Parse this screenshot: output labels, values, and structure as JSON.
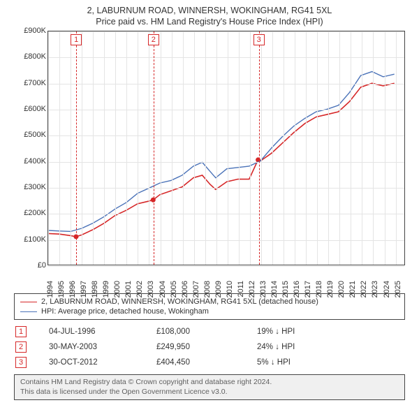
{
  "titles": {
    "line1": "2, LABURNUM ROAD, WINNERSH, WOKINGHAM, RG41 5XL",
    "line2": "Price paid vs. HM Land Registry's House Price Index (HPI)"
  },
  "chart": {
    "type": "line",
    "background_color": "#ffffff",
    "grid_color": "#e4e4e4",
    "axis_color": "#444444",
    "x": {
      "min": 1994,
      "max": 2025.9,
      "ticks": [
        1994,
        1995,
        1996,
        1997,
        1998,
        1999,
        2000,
        2001,
        2002,
        2003,
        2004,
        2005,
        2006,
        2007,
        2008,
        2009,
        2010,
        2011,
        2012,
        2013,
        2014,
        2015,
        2016,
        2017,
        2018,
        2019,
        2020,
        2021,
        2022,
        2023,
        2024,
        2025
      ],
      "tick_labels": [
        "1994",
        "1995",
        "1996",
        "1997",
        "1998",
        "1999",
        "2000",
        "2001",
        "2002",
        "2003",
        "2004",
        "2005",
        "2006",
        "2007",
        "2008",
        "2009",
        "2010",
        "2011",
        "2012",
        "2013",
        "2014",
        "2015",
        "2016",
        "2017",
        "2018",
        "2019",
        "2020",
        "2021",
        "2022",
        "2023",
        "2024",
        "2025"
      ],
      "label_fontsize": 11
    },
    "y": {
      "min": 0,
      "max": 900000,
      "ticks": [
        0,
        100000,
        200000,
        300000,
        400000,
        500000,
        600000,
        700000,
        800000,
        900000
      ],
      "tick_labels": [
        "£0",
        "£100K",
        "£200K",
        "£300K",
        "£400K",
        "£500K",
        "£600K",
        "£700K",
        "£800K",
        "£900K"
      ],
      "label_fontsize": 11
    },
    "series": [
      {
        "id": "property",
        "label": "2, LABURNUM ROAD, WINNERSH, WOKINGHAM, RG41 5XL (detached house)",
        "color": "#d62728",
        "line_width": 1.6,
        "points": [
          [
            1994.0,
            120000
          ],
          [
            1995.0,
            118000
          ],
          [
            1996.0,
            112000
          ],
          [
            1996.5,
            108000
          ],
          [
            1997.0,
            115000
          ],
          [
            1998.0,
            135000
          ],
          [
            1999.0,
            160000
          ],
          [
            2000.0,
            190000
          ],
          [
            2001.0,
            210000
          ],
          [
            2002.0,
            235000
          ],
          [
            2003.0,
            245000
          ],
          [
            2003.4,
            249950
          ],
          [
            2004.0,
            270000
          ],
          [
            2005.0,
            285000
          ],
          [
            2006.0,
            300000
          ],
          [
            2007.0,
            335000
          ],
          [
            2007.8,
            345000
          ],
          [
            2008.5,
            310000
          ],
          [
            2009.0,
            290000
          ],
          [
            2010.0,
            320000
          ],
          [
            2011.0,
            330000
          ],
          [
            2012.0,
            330000
          ],
          [
            2012.8,
            404450
          ],
          [
            2013.0,
            400000
          ],
          [
            2014.0,
            430000
          ],
          [
            2015.0,
            470000
          ],
          [
            2016.0,
            510000
          ],
          [
            2017.0,
            545000
          ],
          [
            2018.0,
            570000
          ],
          [
            2019.0,
            580000
          ],
          [
            2020.0,
            590000
          ],
          [
            2021.0,
            630000
          ],
          [
            2022.0,
            685000
          ],
          [
            2023.0,
            700000
          ],
          [
            2024.0,
            690000
          ],
          [
            2024.5,
            695000
          ],
          [
            2025.0,
            700000
          ]
        ],
        "markers": [
          {
            "x": 1996.5,
            "y": 108000
          },
          {
            "x": 2003.4,
            "y": 249950
          },
          {
            "x": 2012.8,
            "y": 404450
          }
        ]
      },
      {
        "id": "hpi",
        "label": "HPI: Average price, detached house, Wokingham",
        "color": "#4a72b8",
        "line_width": 1.4,
        "points": [
          [
            1994.0,
            132000
          ],
          [
            1995.0,
            130000
          ],
          [
            1996.0,
            128000
          ],
          [
            1997.0,
            140000
          ],
          [
            1998.0,
            160000
          ],
          [
            1999.0,
            185000
          ],
          [
            2000.0,
            215000
          ],
          [
            2001.0,
            240000
          ],
          [
            2002.0,
            275000
          ],
          [
            2003.0,
            295000
          ],
          [
            2004.0,
            315000
          ],
          [
            2005.0,
            325000
          ],
          [
            2006.0,
            345000
          ],
          [
            2007.0,
            380000
          ],
          [
            2007.8,
            395000
          ],
          [
            2008.5,
            360000
          ],
          [
            2009.0,
            335000
          ],
          [
            2010.0,
            370000
          ],
          [
            2011.0,
            375000
          ],
          [
            2012.0,
            380000
          ],
          [
            2013.0,
            400000
          ],
          [
            2014.0,
            450000
          ],
          [
            2015.0,
            495000
          ],
          [
            2016.0,
            535000
          ],
          [
            2017.0,
            565000
          ],
          [
            2018.0,
            590000
          ],
          [
            2019.0,
            600000
          ],
          [
            2020.0,
            615000
          ],
          [
            2021.0,
            665000
          ],
          [
            2022.0,
            730000
          ],
          [
            2023.0,
            745000
          ],
          [
            2024.0,
            725000
          ],
          [
            2024.5,
            730000
          ],
          [
            2025.0,
            735000
          ]
        ]
      }
    ],
    "events": [
      {
        "id": "1",
        "x": 1996.5
      },
      {
        "id": "2",
        "x": 2003.4
      },
      {
        "id": "3",
        "x": 2012.8
      }
    ],
    "event_color": "#d62728"
  },
  "legend": {
    "items": [
      {
        "series": "property"
      },
      {
        "series": "hpi"
      }
    ]
  },
  "sales": [
    {
      "id": "1",
      "date": "04-JUL-1996",
      "price": "£108,000",
      "diff": "19% ↓ HPI"
    },
    {
      "id": "2",
      "date": "30-MAY-2003",
      "price": "£249,950",
      "diff": "24% ↓ HPI"
    },
    {
      "id": "3",
      "date": "30-OCT-2012",
      "price": "£404,450",
      "diff": "5% ↓ HPI"
    }
  ],
  "footer": {
    "line1": "Contains HM Land Registry data © Crown copyright and database right 2024.",
    "line2": "This data is licensed under the Open Government Licence v3.0."
  }
}
